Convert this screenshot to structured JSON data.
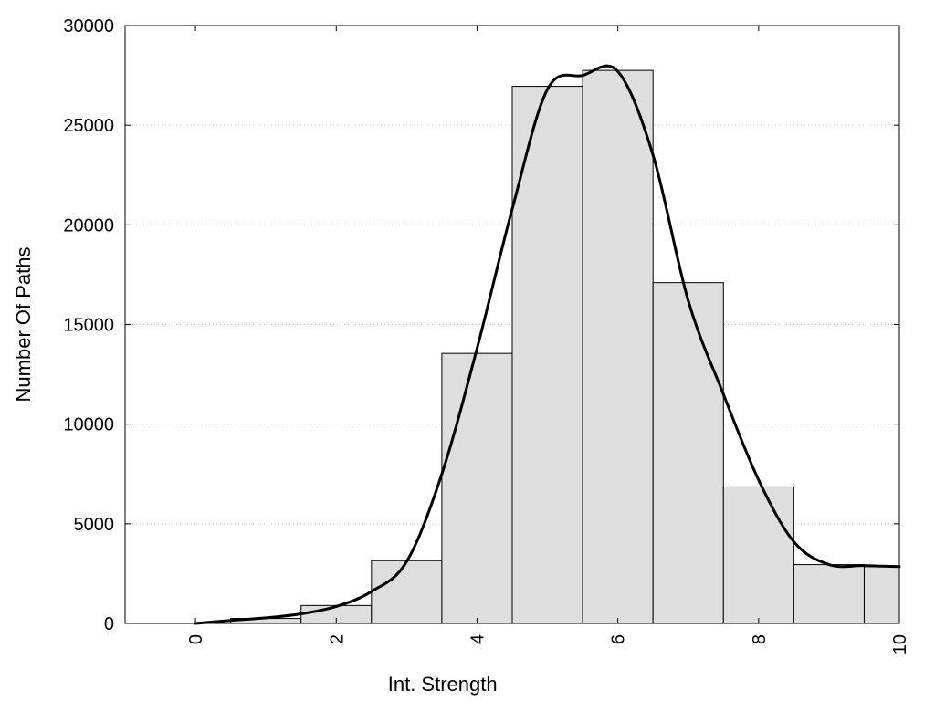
{
  "chart_data": {
    "type": "bar",
    "xlabel": "Int. Strength",
    "ylabel": "Number Of Paths",
    "xlim": [
      -1,
      10
    ],
    "ylim": [
      0,
      30000
    ],
    "x_ticks": [
      0,
      2,
      4,
      6,
      8,
      10
    ],
    "x_tick_labels": [
      "0",
      "2",
      "4",
      "6",
      "8",
      "10"
    ],
    "y_ticks": [
      0,
      5000,
      10000,
      15000,
      20000,
      25000,
      30000
    ],
    "y_tick_labels": [
      "0",
      "5000",
      "10000",
      "15000",
      "20000",
      "25000",
      "30000"
    ],
    "grid": "horizontal dotted",
    "bar_width": 1,
    "bars": [
      {
        "x": 0,
        "value": 0
      },
      {
        "x": 1,
        "value": 250
      },
      {
        "x": 2,
        "value": 900
      },
      {
        "x": 3,
        "value": 3150
      },
      {
        "x": 4,
        "value": 13550
      },
      {
        "x": 5,
        "value": 26950
      },
      {
        "x": 6,
        "value": 27750
      },
      {
        "x": 7,
        "value": 17100
      },
      {
        "x": 8,
        "value": 6850
      },
      {
        "x": 9,
        "value": 2950
      },
      {
        "x": 10,
        "value": 2850
      }
    ],
    "curve": {
      "type": "line",
      "x": [
        0,
        0.5,
        1,
        1.5,
        2,
        2.5,
        3,
        3.5,
        4,
        4.5,
        5,
        5.5,
        6,
        6.5,
        7,
        7.5,
        8,
        8.5,
        9,
        9.5,
        10
      ],
      "y": [
        0,
        150,
        280,
        480,
        850,
        1600,
        3100,
        7500,
        13800,
        20800,
        26800,
        27500,
        27700,
        23500,
        16200,
        11500,
        7200,
        4100,
        2950,
        2900,
        2850
      ]
    },
    "colors": {
      "bar_fill": "#dedede",
      "bar_stroke": "#000000",
      "curve": "#000000"
    }
  }
}
